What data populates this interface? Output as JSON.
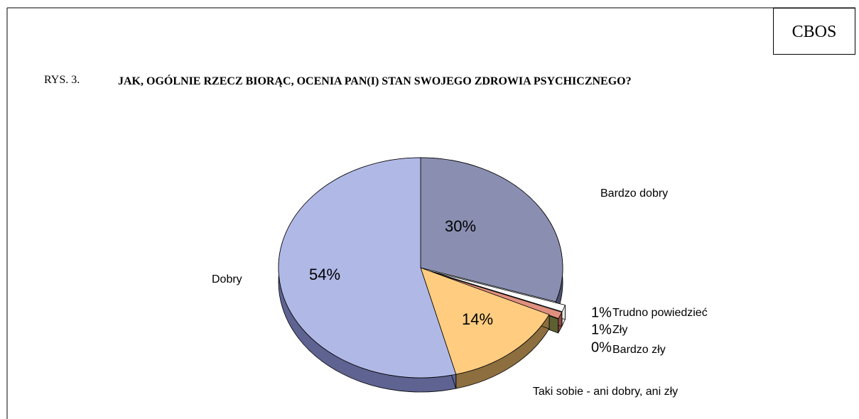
{
  "header": {
    "source": "CBOS",
    "figure_number": "RYS. 3."
  },
  "chart_data": {
    "type": "pie3d",
    "title": "JAK, OGÓLNIE RZECZ BIORĄC, OCENIA PAN(I) STAN SWOJEGO ZDROWIA PSYCHICZNEGO?",
    "categories": [
      "Bardzo dobry",
      "Trudno powiedzieć",
      "Zły",
      "Bardzo zły",
      "Taki sobie - ani dobry, ani zły",
      "Dobry"
    ],
    "values": [
      30,
      1,
      1,
      0,
      14,
      54
    ],
    "value_labels": [
      "30%",
      "1%",
      "1%",
      "0%",
      "14%",
      "54%"
    ],
    "colors": [
      "#8a8fb2",
      "#ffffff",
      "#e0907f",
      "#9ba262",
      "#ffcc80",
      "#b0b8e6"
    ],
    "side_colors": [
      "#4d506c",
      "#e8e8e8",
      "#8c4a40",
      "#5c6033",
      "#8c6e3f",
      "#5e6391"
    ]
  }
}
